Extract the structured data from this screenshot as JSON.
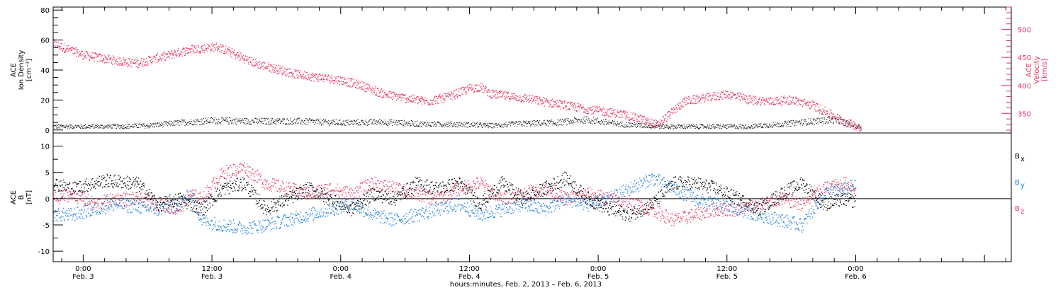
{
  "colors": {
    "black": "#000000",
    "blue": "#1f7fe0",
    "pink": "#e8335c",
    "axis": "#000000"
  },
  "xaxis": {
    "label": "hours:minutes, Feb. 2, 2013 – Feb. 6, 2013",
    "range_hours": [
      -2.8,
      86.5
    ],
    "major_ticks": [
      {
        "hour": 0,
        "time": "0:00",
        "date": "Feb. 3"
      },
      {
        "hour": 12,
        "time": "12:00",
        "date": "Feb. 3"
      },
      {
        "hour": 24,
        "time": "0:00",
        "date": "Feb. 4"
      },
      {
        "hour": 36,
        "time": "12:00",
        "date": "Feb. 4"
      },
      {
        "hour": 48,
        "time": "0:00",
        "date": "Feb. 5"
      },
      {
        "hour": 60,
        "time": "12:00",
        "date": "Feb. 5"
      },
      {
        "hour": 72,
        "time": "0:00",
        "date": "Feb. 6"
      }
    ],
    "minor_step_hours": 2
  },
  "chart_data": [
    {
      "type": "scatter",
      "panel": "top",
      "ylabel": [
        "ACE",
        "Ion Density",
        "[cm⁻³]"
      ],
      "ylim": [
        -2,
        82
      ],
      "yticks": [
        0,
        20,
        40,
        60,
        80
      ],
      "ylabel_right": [
        "ACE",
        "Velocity",
        "[km/s]"
      ],
      "ylim_right": [
        315,
        540
      ],
      "yticks_right": [
        350,
        400,
        450,
        500
      ],
      "series": [
        {
          "color": "black",
          "axis": "left",
          "x": [
            -2.8,
            2,
            6,
            9,
            12,
            16,
            20,
            24,
            28,
            32,
            35,
            38,
            41,
            44,
            47,
            50,
            54,
            58,
            62,
            65,
            68,
            70,
            72.5
          ],
          "y": [
            2.5,
            2.5,
            3,
            5,
            6.5,
            6,
            6,
            5,
            5.5,
            4,
            4,
            3,
            4.5,
            5,
            7,
            4,
            2.5,
            2.5,
            2.5,
            4,
            6,
            7,
            2
          ]
        },
        {
          "color": "pink",
          "axis": "right",
          "x": [
            -2.8,
            0,
            3,
            5,
            7,
            10,
            12.5,
            16,
            20,
            24,
            26,
            28,
            30,
            32,
            34,
            36,
            37,
            38,
            41,
            44,
            47,
            50,
            52,
            53.5,
            56,
            60,
            62,
            64,
            66,
            68,
            69,
            70,
            71,
            72.5
          ],
          "y": [
            475,
            455,
            445,
            440,
            450,
            465,
            470,
            440,
            420,
            410,
            400,
            385,
            378,
            372,
            380,
            395,
            398,
            385,
            378,
            368,
            358,
            350,
            340,
            330,
            372,
            385,
            375,
            372,
            375,
            365,
            355,
            345,
            335,
            325
          ]
        }
      ]
    },
    {
      "type": "scatter",
      "panel": "bottom",
      "ylabel": [
        "ACE",
        "B",
        "[nT]"
      ],
      "ylim": [
        -12,
        12.5
      ],
      "yticks": [
        -10,
        -5,
        0,
        5,
        10
      ],
      "zero_line": true,
      "legend": [
        {
          "label": "B",
          "sub": "x",
          "color": "black"
        },
        {
          "label": "B",
          "sub": "y",
          "color": "blue"
        },
        {
          "label": "B",
          "sub": "z",
          "color": "pink"
        }
      ],
      "series": [
        {
          "name": "Bx",
          "color": "black",
          "x": [
            -2.8,
            -1,
            2,
            5,
            7,
            9,
            11,
            13,
            15,
            17,
            19,
            21,
            23,
            25,
            27,
            29,
            31,
            33,
            35,
            37,
            39,
            41,
            43,
            45,
            47,
            49,
            51,
            53,
            55,
            57,
            59,
            61,
            63,
            65,
            67,
            69,
            71,
            72
          ],
          "y": [
            3,
            2,
            3.5,
            3,
            -1,
            0,
            -2,
            2,
            3,
            -2,
            0,
            2,
            0,
            -2,
            1,
            0,
            3,
            2,
            3,
            -1,
            3,
            0,
            2,
            4,
            0,
            -2,
            -3,
            -1,
            3,
            3,
            2,
            0,
            -2,
            1,
            3,
            -1,
            0,
            -0.5
          ]
        },
        {
          "name": "By",
          "color": "blue",
          "x": [
            -2.8,
            -1,
            1,
            3,
            5,
            7,
            9,
            10,
            11,
            13,
            15,
            17,
            19,
            21,
            23,
            25,
            27,
            29,
            31,
            33,
            35,
            37,
            39,
            41,
            43,
            45,
            47,
            49,
            51,
            53,
            55,
            57,
            59,
            61,
            63,
            65,
            67,
            69,
            71,
            72
          ],
          "y": [
            -3,
            -3,
            -2,
            -1,
            -1.5,
            -2,
            -1,
            1,
            -4,
            -5,
            -5.5,
            -5,
            -4,
            -3,
            -2,
            -1,
            -3,
            -4,
            -3,
            -2,
            -1,
            -3,
            -2,
            -1,
            -2,
            0,
            -1,
            0,
            2,
            4,
            2,
            0,
            -1,
            -2,
            -3,
            -4,
            -5,
            1,
            2,
            2.5
          ]
        },
        {
          "name": "Bz",
          "color": "pink",
          "x": [
            -2.8,
            -1,
            1,
            3,
            5,
            7,
            9,
            10,
            11,
            13,
            15,
            17,
            19,
            21,
            23,
            25,
            27,
            29,
            31,
            33,
            35,
            37,
            39,
            41,
            43,
            45,
            47,
            49,
            51,
            53,
            55,
            57,
            59,
            61,
            63,
            65,
            67,
            69,
            71,
            72
          ],
          "y": [
            0,
            1,
            -1,
            0,
            0,
            -1,
            -2,
            1,
            0,
            5,
            6,
            3,
            2,
            1,
            2,
            1,
            3,
            2,
            1,
            0,
            2,
            3,
            0,
            1,
            2,
            0,
            1,
            0,
            -1,
            -2,
            -4,
            -3,
            -2,
            -2,
            -1,
            0,
            -1,
            2,
            3,
            2
          ]
        }
      ]
    }
  ]
}
